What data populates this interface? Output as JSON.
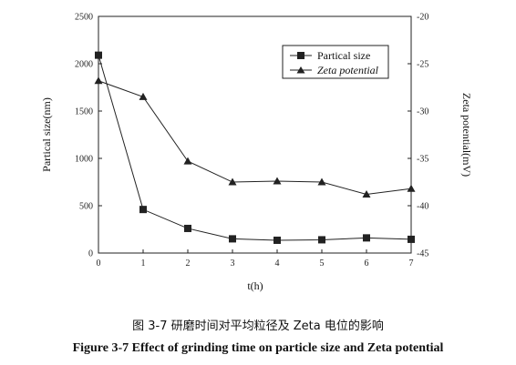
{
  "chart_data": {
    "type": "line",
    "xlabel": "t(h)",
    "ylabel": "Partical size(nm)",
    "y2label": "Zeta potential(mV)",
    "x": [
      0,
      1,
      2,
      3,
      4,
      5,
      6,
      7
    ],
    "xlim": [
      0,
      7
    ],
    "ylim": [
      0,
      2500
    ],
    "y2lim": [
      -45,
      -20
    ],
    "xticks": [
      "0",
      "1",
      "2",
      "3",
      "4",
      "5",
      "6",
      "7"
    ],
    "yticks": [
      "0",
      "500",
      "1000",
      "1500",
      "2000",
      "2500"
    ],
    "y2ticks": [
      "-20",
      "-25",
      "-30",
      "-35",
      "-40",
      "-45"
    ],
    "legend_position": "top-right",
    "grid": false,
    "series": [
      {
        "name": "Partical size",
        "axis": "left",
        "marker": "square",
        "values": [
          2090,
          460,
          260,
          150,
          135,
          140,
          160,
          145
        ]
      },
      {
        "name": "Zeta potential",
        "axis": "right",
        "marker": "triangle",
        "values": [
          -26.8,
          -28.5,
          -35.3,
          -37.5,
          -37.4,
          -37.5,
          -38.8,
          -38.2
        ]
      }
    ]
  },
  "caption": {
    "chinese": "图 3-7 研磨时间对平均粒径及 Zeta 电位的影响",
    "english": "Figure 3-7 Effect of grinding time on particle size and Zeta potential"
  }
}
